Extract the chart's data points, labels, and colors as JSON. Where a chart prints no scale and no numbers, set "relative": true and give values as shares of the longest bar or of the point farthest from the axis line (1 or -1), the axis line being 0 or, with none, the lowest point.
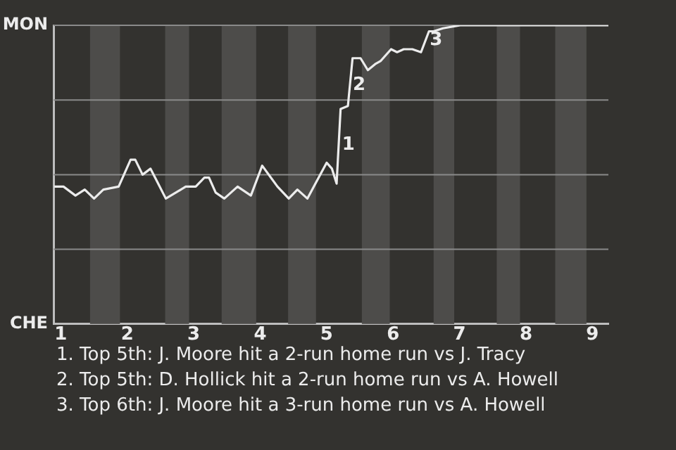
{
  "chart_data": {
    "type": "line",
    "relative": true,
    "x": [
      0.9,
      1.04,
      1.22,
      1.36,
      1.5,
      1.64,
      1.87,
      2.05,
      2.12,
      2.23,
      2.35,
      2.58,
      2.88,
      3.03,
      3.16,
      3.23,
      3.33,
      3.46,
      3.66,
      3.86,
      4.03,
      4.26,
      4.43,
      4.56,
      4.71,
      5.0,
      5.08,
      5.15,
      5.21,
      5.32,
      5.39,
      5.51,
      5.62,
      5.73,
      5.81,
      5.97,
      6.06,
      6.16,
      6.29,
      6.42,
      6.54,
      6.61,
      6.75,
      7.01,
      9.24
    ],
    "series": [
      {
        "color": "#ececec",
        "values": [
          0.46,
          0.46,
          0.43,
          0.45,
          0.42,
          0.45,
          0.46,
          0.55,
          0.55,
          0.5,
          0.52,
          0.42,
          0.46,
          0.46,
          0.49,
          0.49,
          0.44,
          0.42,
          0.46,
          0.43,
          0.53,
          0.46,
          0.42,
          0.45,
          0.42,
          0.54,
          0.52,
          0.47,
          0.72,
          0.73,
          0.89,
          0.89,
          0.85,
          0.87,
          0.88,
          0.92,
          0.91,
          0.92,
          0.92,
          0.91,
          0.98,
          0.98,
          0.99,
          1.0,
          1.0
        ]
      }
    ],
    "xlim": [
      0.89,
      9.24
    ],
    "xticks": [
      1,
      2,
      3,
      4,
      5,
      6,
      7,
      8,
      9
    ],
    "legend": false,
    "marker": "none",
    "line_style": "solid",
    "ref_lines": [
      {
        "axis": "y",
        "value": 0.25,
        "color": "#8a8a8a"
      },
      {
        "axis": "y",
        "value": 0.5,
        "color": "#8a8a8a"
      },
      {
        "axis": "y",
        "value": 0.75,
        "color": "#8a8a8a"
      },
      {
        "axis": "y",
        "value": 1,
        "color": "#8a8a8a"
      }
    ],
    "bands": [
      {
        "axis": "x",
        "from": 1.44,
        "to": 1.89,
        "color": "#4d4c4a"
      },
      {
        "axis": "x",
        "from": 2.57,
        "to": 2.93,
        "color": "#4d4c4a"
      },
      {
        "axis": "x",
        "from": 3.42,
        "to": 3.94,
        "color": "#4d4c4a"
      },
      {
        "axis": "x",
        "from": 4.42,
        "to": 4.84,
        "color": "#4d4c4a"
      },
      {
        "axis": "x",
        "from": 5.53,
        "to": 5.95,
        "color": "#4d4c4a"
      },
      {
        "axis": "x",
        "from": 6.61,
        "to": 6.92,
        "color": "#4d4c4a"
      },
      {
        "axis": "x",
        "from": 7.56,
        "to": 7.91,
        "color": "#4d4c4a"
      },
      {
        "axis": "x",
        "from": 8.44,
        "to": 8.91,
        "color": "#4d4c4a"
      }
    ],
    "annotations": [
      "MON",
      "CHE",
      {
        "text": "1",
        "x": 5.19,
        "y": 0.6
      },
      {
        "text": "2",
        "x": 5.35,
        "y": 0.8
      },
      {
        "text": "3",
        "x": 6.51,
        "y": 0.95
      },
      "1. Top 5th: J. Moore hit a 2-run home run vs J. Tracy",
      "2. Top 5th: D. Hollick hit a 2-run home run vs A. Howell",
      "3. Top 6th: J. Moore hit a 3-run home run vs A. Howell"
    ]
  }
}
